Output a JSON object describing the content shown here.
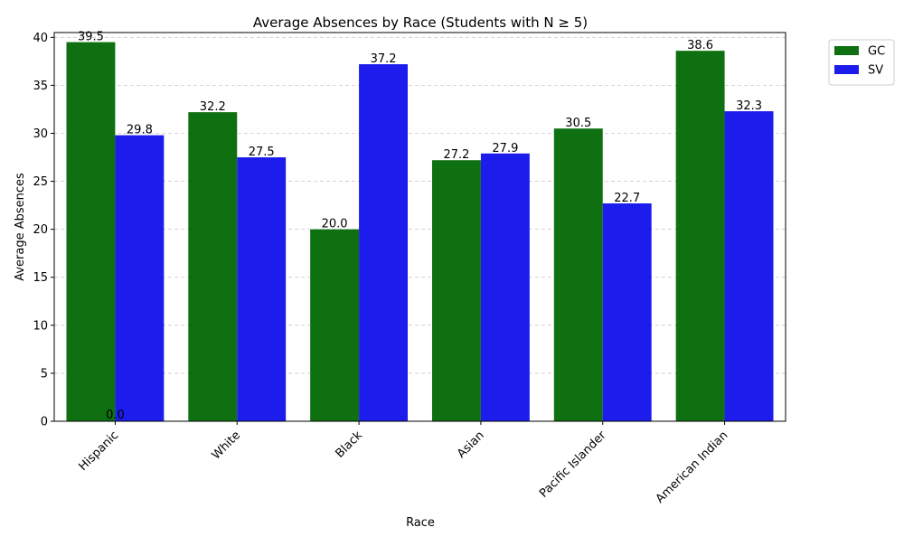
{
  "chart_data": {
    "type": "bar",
    "title": "Average Absences by Race (Students with N ≥ 5)",
    "xlabel": "Race",
    "ylabel": "Average Absences",
    "categories": [
      "Hispanic",
      "White",
      "Black",
      "Asian",
      "Pacific Islander",
      "American Indian"
    ],
    "series": [
      {
        "name": "GC",
        "color": "#0e7010",
        "values": [
          39.5,
          32.2,
          20.0,
          27.2,
          30.5,
          38.6
        ]
      },
      {
        "name": "SV",
        "color": "#1c1ced",
        "values": [
          29.8,
          27.5,
          37.2,
          27.9,
          22.7,
          32.3
        ]
      }
    ],
    "extra_labels": [
      {
        "category": "Hispanic",
        "text": "0.0"
      }
    ],
    "ylim": [
      0,
      40.5
    ],
    "yticks": [
      0,
      5,
      10,
      15,
      20,
      25,
      30,
      35,
      40
    ],
    "grid": "y-dashed",
    "legend": "upper-right-outside"
  }
}
